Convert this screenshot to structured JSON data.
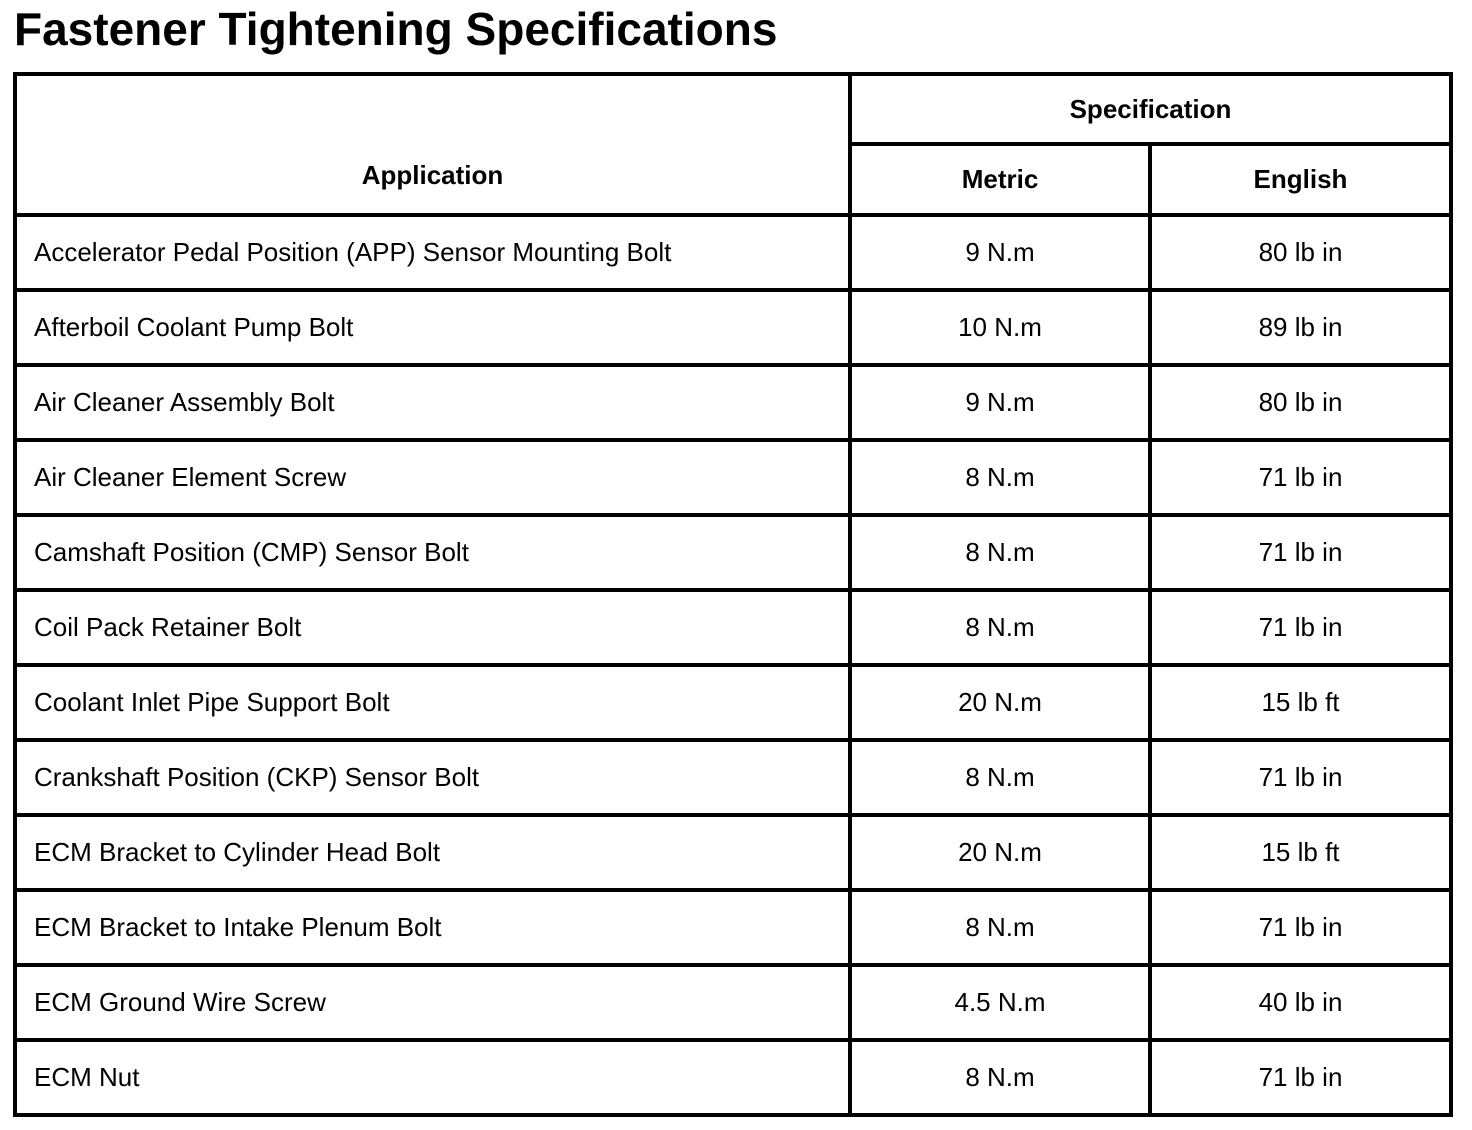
{
  "page": {
    "title": "Fastener Tightening Specifications"
  },
  "table": {
    "header": {
      "application": "Application",
      "specification": "Specification",
      "metric": "Metric",
      "english": "English"
    },
    "rows": [
      {
        "application": "Accelerator Pedal Position (APP) Sensor Mounting Bolt",
        "metric": "9 N.m",
        "english": "80 lb in"
      },
      {
        "application": "Afterboil Coolant Pump Bolt",
        "metric": "10 N.m",
        "english": "89 lb in"
      },
      {
        "application": "Air Cleaner Assembly Bolt",
        "metric": "9 N.m",
        "english": "80 lb in"
      },
      {
        "application": "Air Cleaner Element Screw",
        "metric": "8 N.m",
        "english": "71 lb in"
      },
      {
        "application": "Camshaft Position (CMP) Sensor Bolt",
        "metric": "8 N.m",
        "english": "71 lb in"
      },
      {
        "application": "Coil Pack Retainer Bolt",
        "metric": "8 N.m",
        "english": "71 lb in"
      },
      {
        "application": "Coolant Inlet Pipe Support Bolt",
        "metric": "20 N.m",
        "english": "15 lb ft"
      },
      {
        "application": "Crankshaft Position (CKP) Sensor Bolt",
        "metric": "8 N.m",
        "english": "71 lb in"
      },
      {
        "application": "ECM Bracket to Cylinder Head Bolt",
        "metric": "20 N.m",
        "english": "15 lb ft"
      },
      {
        "application": "ECM Bracket to Intake Plenum Bolt",
        "metric": "8 N.m",
        "english": "71 lb in"
      },
      {
        "application": "ECM Ground Wire Screw",
        "metric": "4.5 N.m",
        "english": "40 lb in"
      },
      {
        "application": "ECM Nut",
        "metric": "8 N.m",
        "english": "71 lb in"
      }
    ],
    "colors": {
      "background": "#ffffff",
      "text": "#000000",
      "border": "#000000"
    }
  }
}
